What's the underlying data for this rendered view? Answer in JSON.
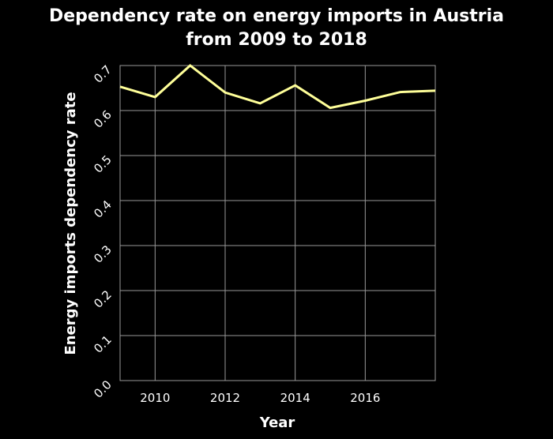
{
  "chart_data": {
    "type": "line",
    "title_lines": [
      "Dependency rate on energy imports in Austria",
      "from 2009 to 2018"
    ],
    "xlabel": "Year",
    "ylabel": "Energy imports dependency rate",
    "xlim": [
      2009,
      2018
    ],
    "ylim": [
      0,
      0.7
    ],
    "xticks": [
      2010,
      2012,
      2014,
      2016
    ],
    "yticks": [
      "0.0",
      "0.1",
      "0.2",
      "0.3",
      "0.4",
      "0.5",
      "0.6",
      "0.7"
    ],
    "grid": true,
    "series": [
      {
        "x": [
          2009,
          2010,
          2011,
          2012,
          2013,
          2014,
          2015,
          2016,
          2017,
          2018
        ],
        "y": [
          0.653,
          0.63,
          0.7,
          0.64,
          0.616,
          0.656,
          0.606,
          0.622,
          0.641,
          0.644
        ],
        "color": "#ffff99"
      }
    ],
    "background_color": "#000000",
    "grid_color": "#999999",
    "text_color": "#ffffff"
  }
}
